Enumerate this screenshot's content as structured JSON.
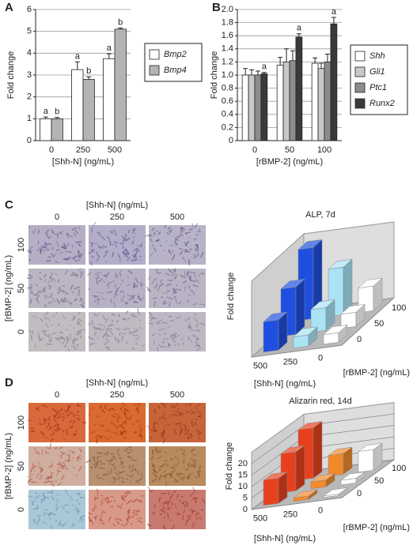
{
  "chart_data": [
    {
      "type": "bar",
      "panel": "A",
      "ylabel": "Fold change",
      "xlabel": "[Shh-N] (ng/mL)",
      "categories": [
        "0",
        "250",
        "500"
      ],
      "series": [
        {
          "name": "Bmp2",
          "color": "#ffffff",
          "values": [
            1.0,
            3.25,
            3.75
          ],
          "errors": [
            0.08,
            0.35,
            0.22
          ],
          "letters": [
            "a",
            "a",
            "a"
          ]
        },
        {
          "name": "Bmp4",
          "color": "#b4b4b4",
          "values": [
            1.0,
            2.8,
            5.1
          ],
          "errors": [
            0.06,
            0.12,
            0.05
          ],
          "letters": [
            "b",
            "b",
            "b"
          ]
        }
      ],
      "ylim": [
        0,
        6
      ],
      "yticks": [
        0,
        1,
        2,
        3,
        4,
        5,
        6
      ],
      "grid": true
    },
    {
      "type": "bar",
      "panel": "B",
      "ylabel": "Fold change",
      "xlabel": "[rBMP-2] (ng/mL)",
      "categories": [
        "0",
        "50",
        "100"
      ],
      "series": [
        {
          "name": "Shh",
          "color": "#ffffff",
          "values": [
            1.0,
            1.15,
            1.18
          ],
          "errors": [
            0.1,
            0.12,
            0.08
          ]
        },
        {
          "name": "Gli1",
          "color": "#c8c8c8",
          "values": [
            1.0,
            1.2,
            1.1
          ],
          "errors": [
            0.08,
            0.2,
            0.08
          ]
        },
        {
          "name": "Ptc1",
          "color": "#8c8c8c",
          "values": [
            1.0,
            1.22,
            1.2
          ],
          "errors": [
            0.06,
            0.15,
            0.12
          ]
        },
        {
          "name": "Runx2",
          "color": "#3a3a3a",
          "values": [
            1.02,
            1.58,
            1.78
          ],
          "errors": [
            0.02,
            0.05,
            0.1
          ],
          "letters": [
            "a",
            "a",
            "a"
          ]
        }
      ],
      "ylim": [
        0,
        2
      ],
      "yticks": [
        0,
        0.2,
        0.4,
        0.6,
        0.8,
        {
          "value": 1,
          "label": "1.0"
        },
        1.2,
        1.4,
        1.6,
        1.8,
        {
          "value": 2,
          "label": "2.0"
        }
      ],
      "grid": true
    },
    {
      "type": "bar3d",
      "title": "ALP, 7d",
      "zlabel": "Fold change",
      "xlabel": "[Shh-N] (ng/mL)",
      "ylabel": "[rBMP-2] (ng/mL)",
      "categories": [
        "500",
        "250",
        "0"
      ],
      "depth_categories": [
        "0",
        "50",
        "100"
      ],
      "colors": [
        "#1e4fe0",
        "#a9e3f5",
        "#ffffff"
      ],
      "values": [
        [
          3.2,
          1.2,
          1.0
        ],
        [
          5.0,
          2.4,
          1.5
        ],
        [
          7.5,
          5.0,
          2.6
        ]
      ],
      "zlim": [
        0,
        8
      ]
    },
    {
      "type": "bar3d",
      "title": "Alizarin red, 14d",
      "zlabel": "Fold change",
      "xlabel": "[Shh-N] (ng/mL)",
      "ylabel": "[rBMP-2] (ng/mL)",
      "categories": [
        "500",
        "250",
        "0"
      ],
      "depth_categories": [
        "0",
        "50",
        "100"
      ],
      "colors": [
        "#e8401c",
        "#f28a2c",
        "#ffffff"
      ],
      "values": [
        [
          11,
          1.5,
          0.6
        ],
        [
          17,
          3,
          2
        ],
        [
          22,
          9,
          9
        ]
      ],
      "zlim": [
        0,
        25
      ],
      "zticks": [
        0,
        5,
        10,
        15,
        20
      ],
      "grid": true
    }
  ],
  "image_panels": [
    {
      "label": "C",
      "column_title": "[Shh-N] (ng/mL)",
      "columns": [
        "0",
        "250",
        "500"
      ],
      "row_title": "[rBMP-2] (ng/mL)",
      "rows": [
        "100",
        "50",
        "0"
      ]
    },
    {
      "label": "D",
      "column_title": "[Shh-N] (ng/mL)",
      "columns": [
        "0",
        "250",
        "500"
      ],
      "row_title": "[rBMP-2] (ng/mL)",
      "rows": [
        "100",
        "50",
        "0"
      ]
    }
  ]
}
